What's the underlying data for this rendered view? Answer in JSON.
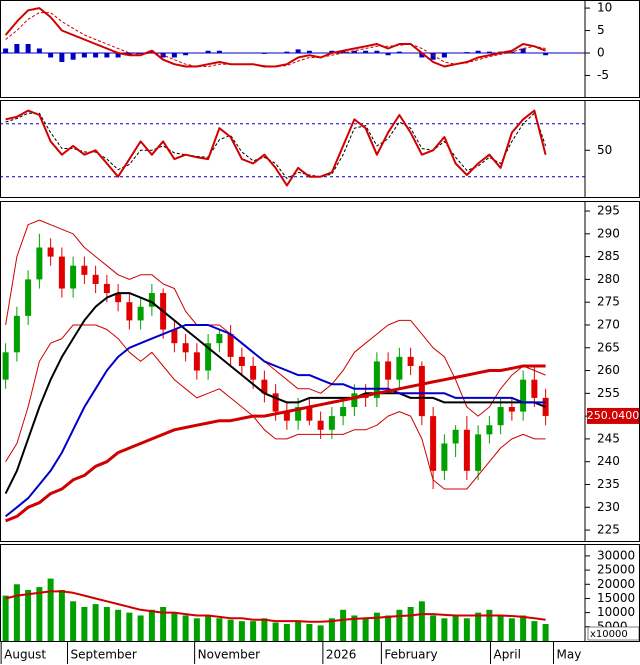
{
  "chart_data": [
    {
      "type": "line",
      "xlim": [
        -0.5,
        51.5
      ],
      "ylim": [
        -9.8,
        11.8
      ],
      "yticks": [
        10,
        5,
        0,
        -5
      ],
      "hlines": [
        0
      ],
      "hline_color": "#0000c0",
      "hline_dash": false,
      "series": [
        {
          "style": "bar",
          "color": "#0000c0",
          "values": [
            1,
            2,
            2,
            1,
            -1,
            -2,
            -1.5,
            -1,
            -1,
            -1,
            -1,
            -0.5,
            -0.2,
            0.5,
            -1,
            -1,
            -0.5,
            0,
            0.5,
            0.5,
            0,
            0,
            0,
            -0.2,
            0,
            0.3,
            0.8,
            0.5,
            0,
            0.5,
            0.5,
            0.5,
            0.5,
            0.5,
            -0.5,
            0.3,
            0,
            -1,
            -1.5,
            -1,
            0,
            0.2,
            0.5,
            0.3,
            0.3,
            0.3,
            1,
            0,
            -0.5
          ]
        },
        {
          "style": "dashed",
          "color": "#d00000",
          "values": [
            3,
            5,
            7.5,
            9,
            9,
            7,
            5.5,
            4,
            3,
            2,
            1,
            0,
            -0.3,
            0,
            -0.5,
            -1.5,
            -2.5,
            -3,
            -3,
            -2.5,
            -2.5,
            -2.5,
            -2.5,
            -2.8,
            -3,
            -2.8,
            -1.8,
            -1,
            -1,
            -0.5,
            0,
            0.5,
            1,
            1.5,
            1.5,
            1.7,
            2,
            1,
            -0.5,
            -2,
            -2.5,
            -2.2,
            -1.5,
            -0.8,
            -0.3,
            0.2,
            1,
            1.5,
            1
          ]
        },
        {
          "style": "line",
          "color": "#d00000",
          "values": [
            4,
            7,
            9.5,
            10,
            8,
            5,
            4,
            3,
            2,
            1,
            0,
            -0.5,
            -0.5,
            0.5,
            -1.5,
            -2.5,
            -3,
            -3,
            -2.5,
            -2,
            -2.5,
            -2.5,
            -2.5,
            -3,
            -3,
            -2.5,
            -1,
            -0.5,
            -1,
            0,
            0.5,
            1,
            1.5,
            2,
            1,
            2,
            2,
            0,
            -2,
            -3,
            -2.5,
            -2,
            -1,
            -0.5,
            0,
            0.5,
            2,
            1.5,
            0.5
          ]
        }
      ]
    },
    {
      "type": "line",
      "xlim": [
        -0.5,
        51.5
      ],
      "ylim": [
        -3,
        107
      ],
      "yticks": [
        50
      ],
      "hlines": [
        80,
        20
      ],
      "hline_color": "#0000c0",
      "hline_dash": true,
      "series": [
        {
          "style": "dashed",
          "color": "#000000",
          "values": [
            82,
            86,
            92,
            92,
            70,
            52,
            52,
            48,
            48,
            40,
            28,
            34,
            50,
            50,
            55,
            47,
            45,
            43,
            42,
            62,
            67,
            48,
            38,
            42,
            35,
            18,
            25,
            22,
            20,
            23,
            45,
            75,
            78,
            55,
            63,
            82,
            75,
            52,
            50,
            60,
            42,
            27,
            32,
            42,
            35,
            60,
            80,
            92,
            55
          ]
        },
        {
          "style": "line",
          "color": "#d00000",
          "values": [
            85,
            88,
            95,
            90,
            60,
            45,
            55,
            45,
            50,
            35,
            20,
            40,
            60,
            45,
            60,
            40,
            45,
            42,
            40,
            75,
            65,
            40,
            35,
            45,
            30,
            10,
            30,
            20,
            20,
            25,
            55,
            85,
            75,
            45,
            70,
            90,
            70,
            45,
            50,
            65,
            35,
            22,
            35,
            45,
            30,
            70,
            85,
            95,
            45
          ]
        }
      ]
    },
    {
      "type": "candlestick",
      "xlim": [
        -0.5,
        51.5
      ],
      "ylim": [
        222.6,
        297.2
      ],
      "yticks": [
        225,
        230,
        235,
        240,
        245,
        250,
        255,
        260,
        265,
        270,
        275,
        280,
        285,
        290,
        295
      ],
      "up_color": "#00a000",
      "down_color": "#e00000",
      "open": [
        258,
        264,
        272,
        280,
        287,
        285,
        278,
        283,
        281,
        279,
        277,
        275,
        271,
        274,
        277,
        269,
        266,
        264,
        260,
        266,
        268,
        263,
        261,
        258,
        255,
        251,
        249,
        252,
        249,
        247,
        250,
        252,
        255,
        254,
        262,
        258,
        263,
        261,
        250,
        238,
        244,
        247,
        238,
        246,
        248,
        252,
        251,
        258,
        254
      ],
      "high": [
        266,
        274,
        282,
        290,
        289,
        287,
        285,
        285,
        283,
        281,
        279,
        277,
        276,
        279,
        278,
        271,
        268,
        266,
        268,
        269,
        270,
        265,
        263,
        260,
        257,
        253,
        254,
        254,
        251,
        252,
        254,
        257,
        257,
        264,
        264,
        265,
        265,
        262,
        252,
        246,
        248,
        250,
        248,
        250,
        254,
        254,
        260,
        261,
        256
      ],
      "low": [
        256,
        262,
        270,
        278,
        283,
        276,
        276,
        279,
        277,
        275,
        273,
        269,
        269,
        272,
        267,
        264,
        262,
        258,
        258,
        264,
        261,
        259,
        256,
        253,
        249,
        247,
        247,
        248,
        245,
        245,
        248,
        250,
        252,
        252,
        256,
        256,
        259,
        248,
        234,
        236,
        241,
        236,
        236,
        244,
        246,
        249,
        249,
        252,
        248
      ],
      "close": [
        264,
        272,
        280,
        287,
        285,
        278,
        283,
        281,
        279,
        277,
        275,
        271,
        274,
        277,
        269,
        266,
        264,
        260,
        266,
        268,
        263,
        261,
        258,
        255,
        251,
        249,
        252,
        249,
        247,
        250,
        252,
        255,
        254,
        262,
        258,
        263,
        261,
        250,
        238,
        244,
        247,
        238,
        246,
        248,
        252,
        251,
        258,
        254,
        250.04
      ],
      "last_label": {
        "value": 250.04,
        "label": "250.0400"
      },
      "series": [
        {
          "style": "thin",
          "color": "#d00000",
          "values": [
            270,
            285,
            292,
            293,
            292,
            291,
            290,
            287,
            285,
            283,
            281,
            280,
            281,
            281,
            279,
            278,
            273,
            270,
            270,
            270,
            268,
            266,
            264,
            262,
            260,
            258,
            256,
            256,
            255,
            257,
            260,
            264,
            266,
            268,
            270,
            271,
            271,
            268,
            265,
            263,
            258,
            252,
            250,
            252,
            256,
            259,
            261,
            260,
            259
          ]
        },
        {
          "style": "thin",
          "color": "#d00000",
          "values": [
            240,
            244,
            252,
            262,
            266,
            267,
            270,
            270,
            270,
            269,
            267,
            264,
            262,
            264,
            261,
            258,
            256,
            254,
            255,
            256,
            254,
            252,
            250,
            247,
            245,
            245,
            246,
            246,
            246,
            246,
            246,
            247,
            247,
            248,
            250,
            251,
            250,
            245,
            236,
            234,
            234,
            234,
            237,
            240,
            243,
            245,
            246,
            245,
            245
          ]
        },
        {
          "style": "line",
          "color": "#000000",
          "values": [
            233,
            238,
            245,
            252,
            258,
            263,
            267,
            271,
            274,
            276,
            277,
            277,
            276,
            275,
            273,
            271,
            269,
            267,
            265,
            263,
            261,
            259,
            257,
            255,
            254,
            253,
            253,
            254,
            254,
            254,
            254,
            254,
            255,
            255,
            255,
            255,
            254,
            254,
            254,
            253,
            253,
            253,
            253,
            253,
            253,
            253,
            253,
            253,
            252
          ]
        },
        {
          "style": "line",
          "color": "#0000c8",
          "values": [
            228,
            230,
            232,
            235,
            238,
            242,
            247,
            252,
            256,
            260,
            263,
            265,
            266,
            267,
            268,
            269,
            270,
            270,
            270,
            269,
            268,
            266,
            264,
            262,
            261,
            260,
            259,
            259,
            258,
            257,
            257,
            256,
            256,
            256,
            256,
            255,
            255,
            255,
            255,
            255,
            254,
            254,
            254,
            254,
            254,
            254,
            253,
            253,
            253
          ]
        },
        {
          "style": "thick",
          "color": "#d00000",
          "values": [
            227,
            228,
            230,
            231,
            233,
            234,
            236,
            237,
            239,
            240,
            242,
            243,
            244,
            245,
            246,
            247,
            247.5,
            248,
            248.5,
            249,
            249,
            249.5,
            250,
            250,
            250.5,
            251,
            251.5,
            252,
            252.5,
            253,
            253.5,
            254,
            254.5,
            255,
            255.5,
            256,
            256.5,
            257,
            257.5,
            258,
            258.5,
            259,
            259.5,
            260,
            260,
            260.5,
            261,
            261,
            261
          ]
        }
      ]
    },
    {
      "type": "bar",
      "xlim": [
        -0.5,
        51.5
      ],
      "ylim": [
        0,
        34200
      ],
      "yticks": [
        5000,
        10000,
        15000,
        20000,
        25000,
        30000
      ],
      "unit_label": "x10000",
      "xticks": [
        {
          "value": -0.4,
          "label": "August"
        },
        {
          "value": 5.5,
          "label": "September"
        },
        {
          "value": 16.8,
          "label": "November"
        },
        {
          "value": 28.2,
          "label": "2026"
        },
        {
          "value": 33.4,
          "label": "February"
        },
        {
          "value": 43.1,
          "label": "April"
        },
        {
          "value": 48.7,
          "label": "May"
        }
      ],
      "series": [
        {
          "style": "bar",
          "color": "#00a000",
          "values": [
            16000,
            20000,
            18000,
            19000,
            22000,
            18000,
            14000,
            12000,
            13000,
            12000,
            11000,
            10000,
            9000,
            11000,
            12000,
            10000,
            9000,
            8000,
            9000,
            8000,
            7500,
            7000,
            7000,
            8000,
            6500,
            6000,
            7000,
            6000,
            5500,
            8000,
            11000,
            9000,
            8000,
            10000,
            9000,
            11000,
            12000,
            14000,
            9000,
            8000,
            9000,
            8000,
            10000,
            11000,
            9000,
            8000,
            9000,
            7000,
            6000
          ]
        },
        {
          "style": "line",
          "color": "#d00000",
          "values": [
            15000,
            16000,
            16500,
            17000,
            17500,
            17500,
            17000,
            16000,
            15000,
            14000,
            13000,
            12000,
            11000,
            10500,
            10000,
            10000,
            9500,
            9000,
            9000,
            8500,
            8000,
            8000,
            7500,
            7500,
            7000,
            7000,
            7000,
            6800,
            6800,
            7000,
            7500,
            7800,
            8000,
            8200,
            8500,
            8800,
            9000,
            9500,
            9500,
            9200,
            9000,
            9000,
            9000,
            9000,
            9000,
            8800,
            8500,
            8000,
            7500
          ]
        }
      ]
    }
  ]
}
